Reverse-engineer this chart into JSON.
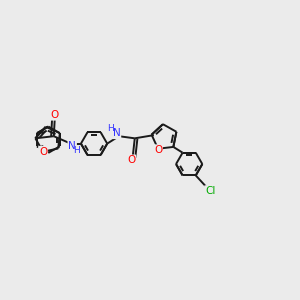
{
  "background_color": "#ebebeb",
  "bond_color": "#1a1a1a",
  "N_color": "#3333ff",
  "O_color": "#ff0000",
  "Cl_color": "#00aa00",
  "line_width": 1.4,
  "figsize": [
    3.0,
    3.0
  ],
  "dpi": 100,
  "xlim": [
    0,
    10
  ],
  "ylim": [
    0,
    10
  ]
}
